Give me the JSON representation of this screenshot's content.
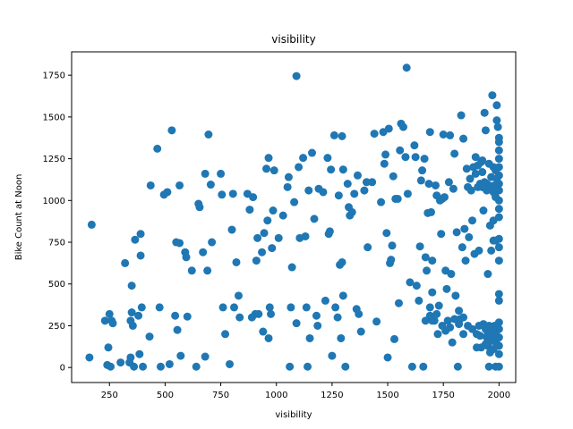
{
  "chart_data": {
    "type": "scatter",
    "title": "visibility",
    "xlabel": "visibility",
    "ylabel": "Bike Count at Noon",
    "xlim": [
      80,
      2075
    ],
    "ylim": [
      -90,
      1890
    ],
    "xticks": [
      250,
      500,
      750,
      1000,
      1250,
      1500,
      1750,
      2000
    ],
    "yticks": [
      0,
      250,
      500,
      750,
      1000,
      1250,
      1500,
      1750
    ],
    "grid": false,
    "marker_color": "#1f77b4",
    "points": [
      [
        160,
        60
      ],
      [
        170,
        855
      ],
      [
        230,
        280
      ],
      [
        240,
        15
      ],
      [
        245,
        120
      ],
      [
        250,
        320
      ],
      [
        255,
        5
      ],
      [
        260,
        280
      ],
      [
        265,
        265
      ],
      [
        300,
        30
      ],
      [
        320,
        625
      ],
      [
        340,
        30
      ],
      [
        345,
        60
      ],
      [
        345,
        280
      ],
      [
        350,
        330
      ],
      [
        350,
        490
      ],
      [
        355,
        250
      ],
      [
        360,
        5
      ],
      [
        365,
        765
      ],
      [
        380,
        310
      ],
      [
        385,
        80
      ],
      [
        390,
        670
      ],
      [
        390,
        800
      ],
      [
        395,
        360
      ],
      [
        400,
        5
      ],
      [
        430,
        185
      ],
      [
        435,
        1090
      ],
      [
        465,
        1310
      ],
      [
        475,
        360
      ],
      [
        480,
        5
      ],
      [
        495,
        1035
      ],
      [
        510,
        1050
      ],
      [
        520,
        20
      ],
      [
        530,
        1420
      ],
      [
        545,
        310
      ],
      [
        550,
        750
      ],
      [
        555,
        225
      ],
      [
        565,
        745
      ],
      [
        565,
        1090
      ],
      [
        570,
        70
      ],
      [
        590,
        690
      ],
      [
        595,
        660
      ],
      [
        600,
        305
      ],
      [
        620,
        580
      ],
      [
        640,
        5
      ],
      [
        650,
        980
      ],
      [
        655,
        960
      ],
      [
        670,
        690
      ],
      [
        680,
        1160
      ],
      [
        680,
        65
      ],
      [
        690,
        580
      ],
      [
        695,
        1395
      ],
      [
        705,
        1095
      ],
      [
        710,
        750
      ],
      [
        750,
        1160
      ],
      [
        755,
        1035
      ],
      [
        760,
        360
      ],
      [
        770,
        200
      ],
      [
        790,
        20
      ],
      [
        800,
        825
      ],
      [
        805,
        1040
      ],
      [
        810,
        360
      ],
      [
        820,
        630
      ],
      [
        830,
        430
      ],
      [
        835,
        300
      ],
      [
        870,
        1040
      ],
      [
        880,
        945
      ],
      [
        890,
        300
      ],
      [
        895,
        1020
      ],
      [
        905,
        320
      ],
      [
        910,
        640
      ],
      [
        915,
        775
      ],
      [
        920,
        320
      ],
      [
        935,
        690
      ],
      [
        940,
        215
      ],
      [
        945,
        805
      ],
      [
        955,
        1190
      ],
      [
        960,
        880
      ],
      [
        965,
        1255
      ],
      [
        965,
        175
      ],
      [
        970,
        360
      ],
      [
        975,
        320
      ],
      [
        980,
        715
      ],
      [
        985,
        940
      ],
      [
        990,
        1180
      ],
      [
        1010,
        775
      ],
      [
        1030,
        910
      ],
      [
        1050,
        1080
      ],
      [
        1055,
        1140
      ],
      [
        1060,
        5
      ],
      [
        1065,
        360
      ],
      [
        1070,
        600
      ],
      [
        1080,
        990
      ],
      [
        1090,
        1745
      ],
      [
        1090,
        265
      ],
      [
        1100,
        1200
      ],
      [
        1105,
        775
      ],
      [
        1120,
        1255
      ],
      [
        1130,
        785
      ],
      [
        1135,
        360
      ],
      [
        1140,
        5
      ],
      [
        1145,
        1060
      ],
      [
        1150,
        175
      ],
      [
        1160,
        1285
      ],
      [
        1170,
        890
      ],
      [
        1180,
        310
      ],
      [
        1185,
        250
      ],
      [
        1190,
        1070
      ],
      [
        1210,
        1050
      ],
      [
        1220,
        400
      ],
      [
        1230,
        1255
      ],
      [
        1235,
        800
      ],
      [
        1240,
        815
      ],
      [
        1245,
        1185
      ],
      [
        1250,
        70
      ],
      [
        1260,
        1390
      ],
      [
        1265,
        360
      ],
      [
        1275,
        300
      ],
      [
        1280,
        1030
      ],
      [
        1285,
        615
      ],
      [
        1290,
        175
      ],
      [
        1295,
        1385
      ],
      [
        1295,
        630
      ],
      [
        1300,
        1185
      ],
      [
        1300,
        430
      ],
      [
        1310,
        5
      ],
      [
        1320,
        1100
      ],
      [
        1325,
        960
      ],
      [
        1330,
        910
      ],
      [
        1340,
        930
      ],
      [
        1350,
        1040
      ],
      [
        1360,
        350
      ],
      [
        1365,
        1150
      ],
      [
        1370,
        320
      ],
      [
        1380,
        215
      ],
      [
        1395,
        1060
      ],
      [
        1405,
        1110
      ],
      [
        1410,
        720
      ],
      [
        1430,
        1110
      ],
      [
        1440,
        1400
      ],
      [
        1450,
        275
      ],
      [
        1470,
        990
      ],
      [
        1480,
        1410
      ],
      [
        1485,
        1220
      ],
      [
        1490,
        1275
      ],
      [
        1495,
        805
      ],
      [
        1500,
        60
      ],
      [
        1505,
        1430
      ],
      [
        1510,
        625
      ],
      [
        1515,
        645
      ],
      [
        1520,
        730
      ],
      [
        1525,
        1145
      ],
      [
        1530,
        170
      ],
      [
        1535,
        1010
      ],
      [
        1545,
        1010
      ],
      [
        1550,
        385
      ],
      [
        1555,
        1300
      ],
      [
        1560,
        1460
      ],
      [
        1570,
        1440
      ],
      [
        1580,
        1260
      ],
      [
        1585,
        1795
      ],
      [
        1590,
        1040
      ],
      [
        1600,
        510
      ],
      [
        1610,
        5
      ],
      [
        1620,
        1330
      ],
      [
        1625,
        1260
      ],
      [
        1630,
        490
      ],
      [
        1640,
        400
      ],
      [
        1645,
        725
      ],
      [
        1650,
        1120
      ],
      [
        1655,
        1180
      ],
      [
        1660,
        5
      ],
      [
        1665,
        1250
      ],
      [
        1670,
        280
      ],
      [
        1670,
        660
      ],
      [
        1675,
        580
      ],
      [
        1680,
        925
      ],
      [
        1685,
        1100
      ],
      [
        1690,
        1410
      ],
      [
        1690,
        360
      ],
      [
        1695,
        930
      ],
      [
        1700,
        640
      ],
      [
        1700,
        450
      ],
      [
        1710,
        280
      ],
      [
        1715,
        1090
      ],
      [
        1720,
        1030
      ],
      [
        1725,
        200
      ],
      [
        1730,
        370
      ],
      [
        1735,
        1000
      ],
      [
        1740,
        800
      ],
      [
        1745,
        1010
      ],
      [
        1750,
        1395
      ],
      [
        1755,
        1020
      ],
      [
        1760,
        580
      ],
      [
        1765,
        470
      ],
      [
        1770,
        280
      ],
      [
        1775,
        1110
      ],
      [
        1780,
        1390
      ],
      [
        1785,
        560
      ],
      [
        1790,
        150
      ],
      [
        1795,
        1070
      ],
      [
        1800,
        1280
      ],
      [
        1805,
        430
      ],
      [
        1810,
        810
      ],
      [
        1815,
        5
      ],
      [
        1820,
        340
      ],
      [
        1825,
        290
      ],
      [
        1830,
        1510
      ],
      [
        1835,
        720
      ],
      [
        1840,
        1370
      ],
      [
        1840,
        200
      ],
      [
        1845,
        830
      ],
      [
        1850,
        640
      ],
      [
        1855,
        1190
      ],
      [
        1860,
        1080
      ],
      [
        1865,
        780
      ],
      [
        1870,
        1130
      ],
      [
        1875,
        1060
      ],
      [
        1880,
        880
      ],
      [
        1885,
        1200
      ],
      [
        1890,
        680
      ],
      [
        1895,
        1260
      ],
      [
        1900,
        200
      ],
      [
        1905,
        1080
      ],
      [
        1910,
        700
      ],
      [
        1915,
        190
      ],
      [
        1920,
        1230
      ],
      [
        1925,
        1080
      ],
      [
        1930,
        940
      ],
      [
        1935,
        1525
      ],
      [
        1940,
        1420
      ],
      [
        1945,
        1090
      ],
      [
        1950,
        560
      ],
      [
        1955,
        5
      ],
      [
        1960,
        850
      ],
      [
        1965,
        700
      ],
      [
        1970,
        1630
      ],
      [
        1975,
        760
      ],
      [
        1980,
        1090
      ],
      [
        1985,
        5
      ],
      [
        1990,
        1570
      ],
      [
        1990,
        1480
      ],
      [
        1995,
        1440
      ],
      [
        2000,
        1375
      ],
      [
        2000,
        1350
      ],
      [
        2000,
        1300
      ],
      [
        2000,
        1250
      ],
      [
        2000,
        1200
      ],
      [
        2000,
        1150
      ],
      [
        2000,
        1100
      ],
      [
        2000,
        1060
      ],
      [
        2000,
        1000
      ],
      [
        2000,
        950
      ],
      [
        2000,
        900
      ],
      [
        2000,
        770
      ],
      [
        2000,
        720
      ],
      [
        2000,
        640
      ],
      [
        2000,
        440
      ],
      [
        2000,
        400
      ],
      [
        2000,
        270
      ],
      [
        2000,
        230
      ],
      [
        2000,
        180
      ],
      [
        2000,
        130
      ],
      [
        2000,
        80
      ],
      [
        2000,
        5
      ],
      [
        1940,
        230
      ],
      [
        1945,
        180
      ],
      [
        1950,
        130
      ],
      [
        1955,
        250
      ],
      [
        1960,
        90
      ],
      [
        1965,
        210
      ],
      [
        1970,
        160
      ],
      [
        1975,
        110
      ],
      [
        1980,
        250
      ],
      [
        1985,
        200
      ],
      [
        1990,
        140
      ],
      [
        1970,
        230
      ],
      [
        1960,
        170
      ],
      [
        1950,
        200
      ],
      [
        1940,
        140
      ],
      [
        1930,
        260
      ],
      [
        1920,
        120
      ],
      [
        1910,
        250
      ],
      [
        1900,
        120
      ],
      [
        1880,
        230
      ],
      [
        1860,
        250
      ],
      [
        1840,
        300
      ],
      [
        1820,
        260
      ],
      [
        1800,
        290
      ],
      [
        1780,
        240
      ],
      [
        1760,
        220
      ],
      [
        1745,
        250
      ],
      [
        1720,
        320
      ],
      [
        1700,
        280
      ],
      [
        1690,
        310
      ],
      [
        1985,
        760
      ],
      [
        1975,
        1050
      ],
      [
        1965,
        1070
      ],
      [
        1955,
        1220
      ],
      [
        1945,
        1100
      ],
      [
        1935,
        1080
      ],
      [
        1925,
        1240
      ],
      [
        1915,
        1100
      ],
      [
        1905,
        1210
      ],
      [
        1895,
        1160
      ],
      [
        1985,
        1180
      ],
      [
        1975,
        1200
      ],
      [
        1965,
        1140
      ],
      [
        1955,
        1090
      ],
      [
        1945,
        1060
      ],
      [
        1935,
        1110
      ],
      [
        1925,
        1170
      ],
      [
        1985,
        1020
      ],
      [
        1975,
        880
      ],
      [
        1990,
        1130
      ]
    ]
  }
}
